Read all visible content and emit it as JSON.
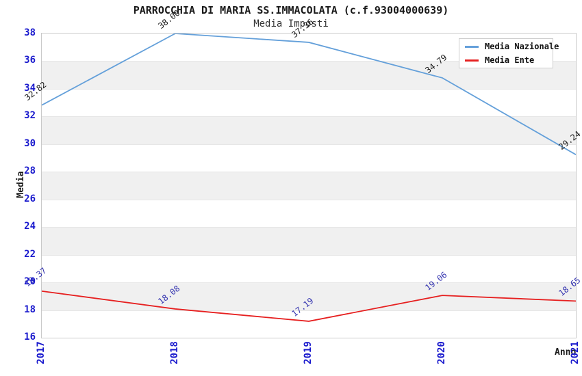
{
  "chart_data": {
    "type": "line",
    "title": "PARROCCHIA DI MARIA SS.IMMACOLATA (c.f.93004000639)",
    "subtitle": "Media Imposti",
    "xlabel": "Anno",
    "ylabel": "Media",
    "categories": [
      "2017",
      "2018",
      "2019",
      "2020",
      "2021"
    ],
    "series": [
      {
        "name": "Media Nazionale",
        "color": "#64a0da",
        "label_color": "#1a1a1a",
        "values": [
          32.82,
          38.0,
          37.36,
          34.79,
          29.24
        ]
      },
      {
        "name": "Media Ente",
        "color": "#e62020",
        "label_color": "#3535b0",
        "values": [
          19.37,
          18.08,
          17.19,
          19.06,
          18.65
        ]
      }
    ],
    "ylim": [
      16,
      38
    ],
    "ytick_step": 2,
    "value_label_decimals": 2,
    "grid": "horizontal-bands",
    "band_color": "#f0f0f0",
    "tick_color": "#1a1acd",
    "legend_position": "top-right"
  }
}
